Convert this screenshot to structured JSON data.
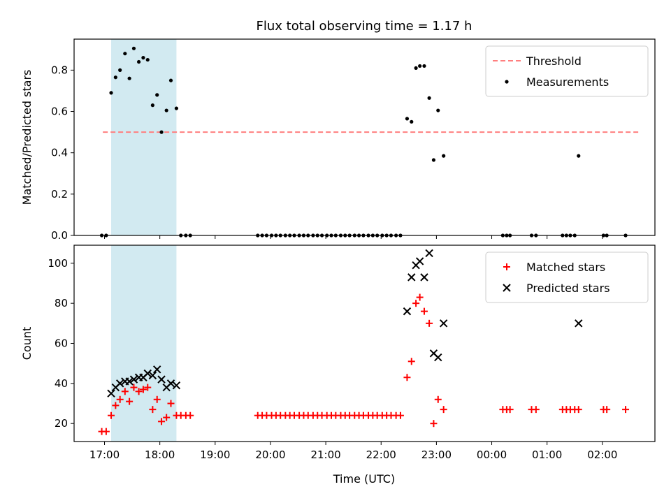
{
  "figure": {
    "title": "Flux total observing time = 1.17 h",
    "xlabel": "Time (UTC)",
    "xticks": [
      {
        "t": 17.0,
        "label": "17:00"
      },
      {
        "t": 18.0,
        "label": "18:00"
      },
      {
        "t": 19.0,
        "label": "19:00"
      },
      {
        "t": 20.0,
        "label": "20:00"
      },
      {
        "t": 21.0,
        "label": "21:00"
      },
      {
        "t": 22.0,
        "label": "22:00"
      },
      {
        "t": 23.0,
        "label": "23:00"
      },
      {
        "t": 24.0,
        "label": "00:00"
      },
      {
        "t": 25.0,
        "label": "01:00"
      },
      {
        "t": 26.0,
        "label": "02:00"
      }
    ],
    "xlim": [
      16.45,
      26.95
    ],
    "highlight_span": {
      "from": 17.12,
      "to": 18.3,
      "color": "#add8e6"
    }
  },
  "chart_data": [
    {
      "type": "scatter",
      "ylabel": "Matched/Predicted stars",
      "ylim": [
        0,
        0.95
      ],
      "yticks": [
        {
          "v": 0.0,
          "label": "0.0"
        },
        {
          "v": 0.2,
          "label": "0.2"
        },
        {
          "v": 0.4,
          "label": "0.4"
        },
        {
          "v": 0.6,
          "label": "0.6"
        },
        {
          "v": 0.8,
          "label": "0.8"
        }
      ],
      "legend_position": "top-right",
      "threshold": {
        "name": "Threshold",
        "value": 0.5,
        "x_range": [
          16.97,
          26.67
        ],
        "color": "#ff7f7f"
      },
      "series": [
        {
          "name": "Measurements",
          "marker": "dot",
          "color": "#000000",
          "points": [
            [
              16.95,
              0
            ],
            [
              17.03,
              0
            ],
            [
              17.12,
              0.69
            ],
            [
              17.2,
              0.765
            ],
            [
              17.28,
              0.8
            ],
            [
              17.37,
              0.88
            ],
            [
              17.45,
              0.76
            ],
            [
              17.53,
              0.905
            ],
            [
              17.62,
              0.84
            ],
            [
              17.7,
              0.86
            ],
            [
              17.78,
              0.85
            ],
            [
              17.87,
              0.63
            ],
            [
              17.95,
              0.68
            ],
            [
              18.03,
              0.5
            ],
            [
              18.12,
              0.605
            ],
            [
              18.2,
              0.75
            ],
            [
              18.3,
              0.615
            ],
            [
              18.38,
              0
            ],
            [
              18.47,
              0
            ],
            [
              18.55,
              0
            ],
            [
              19.77,
              0
            ],
            [
              19.85,
              0
            ],
            [
              19.93,
              0
            ],
            [
              20.02,
              0
            ],
            [
              20.1,
              0
            ],
            [
              20.18,
              0
            ],
            [
              20.27,
              0
            ],
            [
              20.35,
              0
            ],
            [
              20.43,
              0
            ],
            [
              20.52,
              0
            ],
            [
              20.6,
              0
            ],
            [
              20.68,
              0
            ],
            [
              20.77,
              0
            ],
            [
              20.85,
              0
            ],
            [
              20.93,
              0
            ],
            [
              21.02,
              0
            ],
            [
              21.1,
              0
            ],
            [
              21.18,
              0
            ],
            [
              21.27,
              0
            ],
            [
              21.35,
              0
            ],
            [
              21.43,
              0
            ],
            [
              21.52,
              0
            ],
            [
              21.6,
              0
            ],
            [
              21.68,
              0
            ],
            [
              21.77,
              0
            ],
            [
              21.85,
              0
            ],
            [
              21.93,
              0
            ],
            [
              22.02,
              0
            ],
            [
              22.1,
              0
            ],
            [
              22.18,
              0
            ],
            [
              22.27,
              0
            ],
            [
              22.35,
              0
            ],
            [
              22.47,
              0.565
            ],
            [
              22.55,
              0.55
            ],
            [
              22.63,
              0.81
            ],
            [
              22.7,
              0.82
            ],
            [
              22.78,
              0.82
            ],
            [
              22.87,
              0.665
            ],
            [
              22.95,
              0.365
            ],
            [
              23.03,
              0.605
            ],
            [
              23.13,
              0.385
            ],
            [
              24.2,
              0
            ],
            [
              24.27,
              0
            ],
            [
              24.33,
              0
            ],
            [
              24.72,
              0
            ],
            [
              24.8,
              0
            ],
            [
              25.28,
              0
            ],
            [
              25.35,
              0
            ],
            [
              25.42,
              0
            ],
            [
              25.5,
              0
            ],
            [
              25.57,
              0.385
            ],
            [
              26.02,
              0
            ],
            [
              26.08,
              0
            ],
            [
              26.42,
              0
            ]
          ]
        }
      ]
    },
    {
      "type": "scatter",
      "ylabel": "Count",
      "ylim": [
        11,
        109
      ],
      "yticks": [
        {
          "v": 20,
          "label": "20"
        },
        {
          "v": 40,
          "label": "40"
        },
        {
          "v": 60,
          "label": "60"
        },
        {
          "v": 80,
          "label": "80"
        },
        {
          "v": 100,
          "label": "100"
        }
      ],
      "legend_position": "top-right",
      "series": [
        {
          "name": "Matched stars",
          "marker": "plus",
          "color": "#ff0000",
          "points": [
            [
              16.95,
              16
            ],
            [
              17.03,
              16
            ],
            [
              17.12,
              24
            ],
            [
              17.2,
              29
            ],
            [
              17.28,
              32
            ],
            [
              17.37,
              36
            ],
            [
              17.45,
              31
            ],
            [
              17.53,
              38
            ],
            [
              17.62,
              36
            ],
            [
              17.7,
              37
            ],
            [
              17.78,
              38
            ],
            [
              17.87,
              27
            ],
            [
              17.95,
              32
            ],
            [
              18.03,
              21
            ],
            [
              18.12,
              23
            ],
            [
              18.2,
              30
            ],
            [
              18.3,
              24
            ],
            [
              18.38,
              24
            ],
            [
              18.47,
              24
            ],
            [
              18.55,
              24
            ],
            [
              19.77,
              24
            ],
            [
              19.85,
              24
            ],
            [
              19.93,
              24
            ],
            [
              20.02,
              24
            ],
            [
              20.1,
              24
            ],
            [
              20.18,
              24
            ],
            [
              20.27,
              24
            ],
            [
              20.35,
              24
            ],
            [
              20.43,
              24
            ],
            [
              20.52,
              24
            ],
            [
              20.6,
              24
            ],
            [
              20.68,
              24
            ],
            [
              20.77,
              24
            ],
            [
              20.85,
              24
            ],
            [
              20.93,
              24
            ],
            [
              21.02,
              24
            ],
            [
              21.1,
              24
            ],
            [
              21.18,
              24
            ],
            [
              21.27,
              24
            ],
            [
              21.35,
              24
            ],
            [
              21.43,
              24
            ],
            [
              21.52,
              24
            ],
            [
              21.6,
              24
            ],
            [
              21.68,
              24
            ],
            [
              21.77,
              24
            ],
            [
              21.85,
              24
            ],
            [
              21.93,
              24
            ],
            [
              22.02,
              24
            ],
            [
              22.1,
              24
            ],
            [
              22.18,
              24
            ],
            [
              22.27,
              24
            ],
            [
              22.35,
              24
            ],
            [
              22.47,
              43
            ],
            [
              22.55,
              51
            ],
            [
              22.63,
              80
            ],
            [
              22.7,
              83
            ],
            [
              22.78,
              76
            ],
            [
              22.87,
              70
            ],
            [
              22.95,
              20
            ],
            [
              23.03,
              32
            ],
            [
              23.13,
              27
            ],
            [
              24.2,
              27
            ],
            [
              24.27,
              27
            ],
            [
              24.33,
              27
            ],
            [
              24.72,
              27
            ],
            [
              24.8,
              27
            ],
            [
              25.28,
              27
            ],
            [
              25.35,
              27
            ],
            [
              25.42,
              27
            ],
            [
              25.5,
              27
            ],
            [
              25.57,
              27
            ],
            [
              26.02,
              27
            ],
            [
              26.08,
              27
            ],
            [
              26.42,
              27
            ]
          ]
        },
        {
          "name": "Predicted stars",
          "marker": "cross",
          "color": "#000000",
          "points": [
            [
              17.12,
              35
            ],
            [
              17.2,
              38
            ],
            [
              17.28,
              40
            ],
            [
              17.37,
              41
            ],
            [
              17.45,
              41
            ],
            [
              17.53,
              42
            ],
            [
              17.62,
              43
            ],
            [
              17.7,
              43
            ],
            [
              17.78,
              45
            ],
            [
              17.87,
              44
            ],
            [
              17.95,
              47
            ],
            [
              18.03,
              42
            ],
            [
              18.12,
              38
            ],
            [
              18.2,
              40
            ],
            [
              18.3,
              39
            ],
            [
              22.47,
              76
            ],
            [
              22.55,
              93
            ],
            [
              22.63,
              99
            ],
            [
              22.7,
              101
            ],
            [
              22.78,
              93
            ],
            [
              22.87,
              105
            ],
            [
              22.95,
              55
            ],
            [
              23.03,
              53
            ],
            [
              23.13,
              70
            ],
            [
              25.57,
              70
            ]
          ]
        }
      ]
    }
  ]
}
